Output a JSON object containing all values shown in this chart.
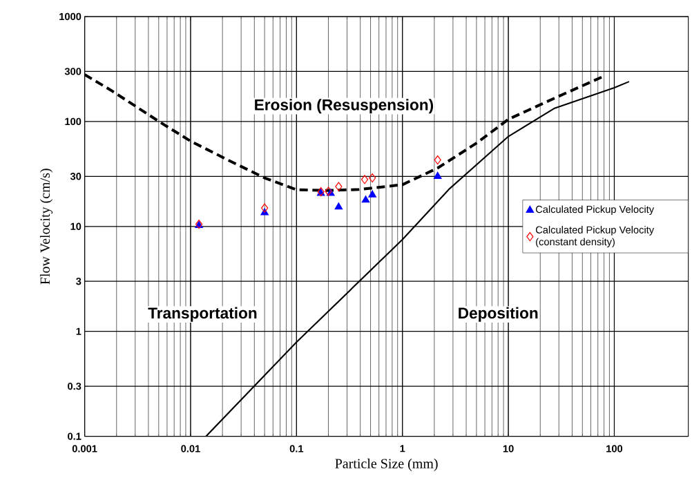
{
  "chart_data": {
    "type": "scatter",
    "xlabel": "Particle Size (mm)",
    "ylabel": "Flow Velocity (cm/s)",
    "log": "xy",
    "grid": true,
    "legend": "right",
    "xlim": [
      0.001,
      500
    ],
    "ylim": [
      0.1,
      1000
    ],
    "xticks": [
      0.001,
      0.01,
      0.1,
      1,
      10,
      100
    ],
    "yticks": [
      0.1,
      0.3,
      1,
      3,
      10,
      30,
      100,
      300,
      1000
    ],
    "annotations": [
      "Erosion (Resuspension)",
      "Transportation",
      "Deposition"
    ],
    "series": [
      {
        "type": "line",
        "line_style": "dashed",
        "marker": "none",
        "color": "#000000",
        "x": [
          0.001,
          0.00175,
          0.0052,
          0.01,
          0.0225,
          0.05,
          0.1,
          0.19,
          0.39,
          1,
          2.15,
          5.1,
          10,
          27,
          80
        ],
        "values": [
          280,
          200,
          98,
          65,
          43,
          29,
          22.4,
          22,
          22.5,
          25,
          36,
          63,
          105,
          166,
          271
        ]
      },
      {
        "type": "line",
        "line_style": "solid",
        "marker": "none",
        "color": "#000000",
        "x": [
          0.014,
          0.1,
          1,
          2.8,
          10,
          27,
          100,
          138
        ],
        "values": [
          0.1,
          0.79,
          7.5,
          23,
          72,
          133,
          210,
          240
        ]
      },
      {
        "type": "scatter",
        "name": "Calculated Pickup Velocity",
        "marker": "triangle",
        "color": "#0000ff",
        "x": [
          0.012,
          0.05,
          0.17,
          0.21,
          0.25,
          0.45,
          0.52,
          2.15
        ],
        "values": [
          10.2,
          13.5,
          20.7,
          20.7,
          15.3,
          17.8,
          20,
          30
        ]
      },
      {
        "type": "scatter",
        "name": "Calculated Pickup Velocity (constant density)",
        "marker": "diamond",
        "color": "#ff0000",
        "x": [
          0.012,
          0.05,
          0.17,
          0.2,
          0.25,
          0.44,
          0.52,
          2.15
        ],
        "values": [
          10.5,
          15,
          21.4,
          21.6,
          24,
          28,
          29,
          43
        ]
      }
    ]
  }
}
